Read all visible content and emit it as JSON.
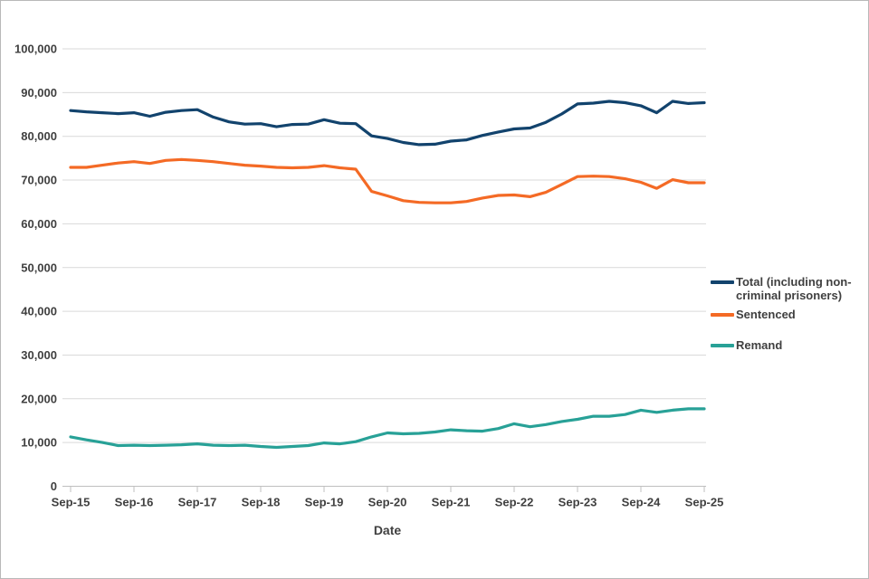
{
  "chart_data": {
    "type": "line",
    "title": "",
    "xlabel": "Date",
    "ylabel": "",
    "ylim": [
      0,
      100000
    ],
    "y_tick_step": 10000,
    "y_tick_labels": [
      "0",
      "10,000",
      "20,000",
      "30,000",
      "40,000",
      "50,000",
      "60,000",
      "70,000",
      "80,000",
      "90,000",
      "100,000"
    ],
    "grid": "horizontal",
    "legend_position": "right",
    "x": [
      "Sep-15",
      "Dec-15",
      "Mar-16",
      "Jun-16",
      "Sep-16",
      "Dec-16",
      "Mar-17",
      "Jun-17",
      "Sep-17",
      "Dec-17",
      "Mar-18",
      "Jun-18",
      "Sep-18",
      "Dec-18",
      "Mar-19",
      "Jun-19",
      "Sep-19",
      "Dec-19",
      "Mar-20",
      "Jun-20",
      "Sep-20",
      "Dec-20",
      "Mar-21",
      "Jun-21",
      "Sep-21",
      "Dec-21",
      "Mar-22",
      "Jun-22",
      "Sep-22",
      "Dec-22",
      "Mar-23",
      "Jun-23",
      "Sep-23",
      "Dec-23",
      "Mar-24",
      "Jun-24",
      "Sep-24",
      "Dec-24",
      "Mar-25",
      "Jun-25",
      "Sep-25"
    ],
    "x_tick_labels": [
      "Sep-15",
      "Sep-16",
      "Sep-17",
      "Sep-18",
      "Sep-19",
      "Sep-20",
      "Sep-21",
      "Sep-22",
      "Sep-23",
      "Sep-24",
      "Sep-25"
    ],
    "series": [
      {
        "name": "Total (including non-criminal prisoners)",
        "color": "#12436D",
        "values": [
          85900,
          85600,
          85400,
          85200,
          85400,
          84600,
          85500,
          85900,
          86100,
          84400,
          83300,
          82800,
          82900,
          82200,
          82700,
          82800,
          83800,
          83000,
          82900,
          80100,
          79500,
          78600,
          78100,
          78200,
          78900,
          79200,
          80200,
          81000,
          81700,
          81900,
          83200,
          85100,
          87400,
          87600,
          88000,
          87700,
          87000,
          85400,
          88000,
          87500,
          87700
        ]
      },
      {
        "name": "Sentenced",
        "color": "#F46A25",
        "values": [
          72900,
          72900,
          73400,
          73900,
          74200,
          73800,
          74500,
          74700,
          74500,
          74200,
          73800,
          73400,
          73200,
          72900,
          72800,
          72900,
          73300,
          72800,
          72500,
          67400,
          66400,
          65300,
          64900,
          64800,
          64800,
          65100,
          65900,
          66500,
          66600,
          66200,
          67200,
          69000,
          70800,
          70900,
          70800,
          70300,
          69500,
          68100,
          70100,
          69400,
          69400
        ]
      },
      {
        "name": "Remand",
        "color": "#28A197",
        "values": [
          11300,
          10600,
          10000,
          9300,
          9400,
          9300,
          9400,
          9500,
          9700,
          9400,
          9300,
          9400,
          9100,
          8900,
          9100,
          9300,
          9900,
          9700,
          10200,
          11300,
          12200,
          12000,
          12100,
          12400,
          12900,
          12700,
          12600,
          13200,
          14300,
          13600,
          14100,
          14800,
          15300,
          16000,
          16000,
          16400,
          17400,
          16900,
          17400,
          17700,
          17700
        ]
      }
    ],
    "colors": {
      "gridline": "#D9D9D9",
      "axis_line": "#BFBFBF",
      "tick_text": "#404040"
    }
  }
}
